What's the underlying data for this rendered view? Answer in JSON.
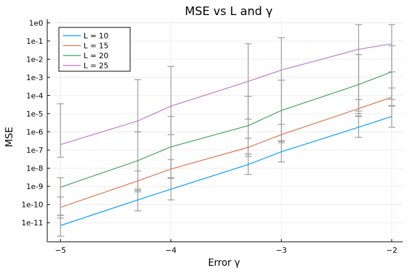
{
  "chart_data": {
    "type": "line",
    "title": "MSE vs L and γ",
    "xlabel": "Error γ",
    "ylabel": "MSE",
    "y_scale": "log10",
    "x": [
      -5,
      -4.3,
      -4,
      -3.3,
      -3,
      -2.3,
      -2
    ],
    "xlim": [
      -5.12,
      -1.9
    ],
    "xticks": [
      -5,
      -4,
      -3,
      -2
    ],
    "xtick_labels": [
      "−5",
      "−4",
      "−3",
      "−2"
    ],
    "ylim_exponent": [
      -12.05,
      0.2
    ],
    "yticks_exponent": [
      -11,
      -10,
      -9,
      -8,
      -7,
      -6,
      -5,
      -4,
      -3,
      -2,
      -1,
      0
    ],
    "ytick_labels": [
      "1e-11",
      "1e-10",
      "1e-9",
      "1e-8",
      "1e-7",
      "1e-6",
      "1e-5",
      "1e-4",
      "1e-3",
      "1e-2",
      "1e-1",
      "1e0"
    ],
    "grid": true,
    "legend_position": "top-left",
    "error_bar_color": "#a0a0a0",
    "series": [
      {
        "name": "L = 10",
        "color": "#009af9",
        "values": [
          7e-12,
          1.8e-10,
          7e-10,
          1.6e-08,
          8e-08,
          1.8e-06,
          7e-06
        ],
        "error_low": [
          1.8e-12,
          4.5e-11,
          1.8e-10,
          4.5e-09,
          2.2e-08,
          5e-07,
          1.8e-06
        ],
        "error_high": [
          2.6e-11,
          7e-10,
          2.8e-09,
          6e-08,
          3.2e-07,
          7.5e-06,
          2.6e-05
        ]
      },
      {
        "name": "L = 15",
        "color": "#e26f46",
        "values": [
          7e-11,
          2e-09,
          9e-09,
          1.4e-07,
          7e-07,
          1.9e-05,
          8e-05
        ],
        "error_low": [
          1.8e-11,
          5e-10,
          2.8e-09,
          4.5e-08,
          2.5e-07,
          7e-06,
          2.8e-05
        ],
        "error_high": [
          2.6e-10,
          7e-09,
          3e-08,
          4.5e-07,
          2.6e-06,
          6e-05,
          0.00026
        ]
      },
      {
        "name": "L = 20",
        "color": "#3da44d",
        "values": [
          9e-10,
          2.6e-08,
          1.5e-07,
          2.2e-06,
          1.5e-05,
          0.0004,
          0.002
        ],
        "error_low": [
          2.5e-11,
          6e-10,
          3e-09,
          6e-08,
          3e-07,
          1e-05,
          6e-05
        ],
        "error_high": [
          3e-09,
          1e-06,
          7e-06,
          9e-05,
          0.0007,
          0.018,
          0.055
        ]
      },
      {
        "name": "L = 25",
        "color": "#c271d2",
        "values": [
          2e-07,
          4e-06,
          2.6e-05,
          0.0006,
          0.0025,
          0.035,
          0.07
        ],
        "error_low": [
          4e-08,
          1e-06,
          7e-07,
          5e-06,
          3e-07,
          1.4e-05,
          0.002
        ],
        "error_high": [
          3.5e-05,
          0.00075,
          0.004,
          0.07,
          0.15,
          0.8,
          0.8
        ]
      }
    ]
  }
}
